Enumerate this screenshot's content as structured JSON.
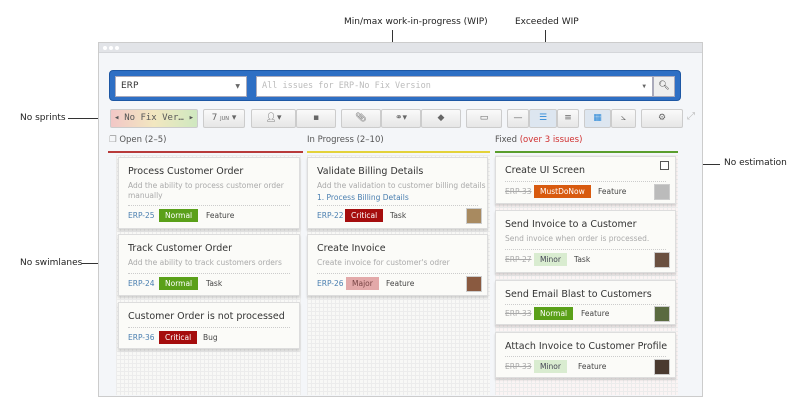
{
  "annotations": {
    "wip": "Min/max work-in-progress (WIP)",
    "exceeded": "Exceeded WIP",
    "sprints": "No sprints",
    "swimlanes": "No swimlanes",
    "estimation": "No estimation"
  },
  "search": {
    "project": "ERP",
    "placeholder": "All issues for ERP-No Fix Version"
  },
  "toolbar": {
    "version": "No Fix Ver…",
    "date_day": "7",
    "date_month": "JUN"
  },
  "colors": {
    "critical": "#a50d0d",
    "normal": "#5aa019",
    "major": "#e3a9a9",
    "minor": "#d9ecd0",
    "mustdonow": "#d85a0f",
    "open_line": "#b83a3a",
    "progress_line": "#e3d23a",
    "fixed_line": "#5a9e2d",
    "exceeded": "#d03030"
  },
  "columns": [
    {
      "title": "Open (2–5)",
      "cards": [
        {
          "title": "Process Customer Order",
          "desc": "Add the ability to process customer order manually",
          "key": "ERP-25",
          "priority": "Normal",
          "type": "Feature"
        },
        {
          "title": "Track Customer Order",
          "desc": "Add the ability to track customers orders",
          "key": "ERP-24",
          "priority": "Normal",
          "type": "Task"
        },
        {
          "title": "Customer Order is not processed",
          "key": "ERP-36",
          "priority": "Critical",
          "type": "Bug"
        }
      ]
    },
    {
      "title": "In Progress (2–10)",
      "cards": [
        {
          "title": "Validate Billing Details",
          "desc": "Add the validation to customer billing details",
          "link": "1. Process Billing Details",
          "key": "ERP-22",
          "priority": "Critical",
          "type": "Task"
        },
        {
          "title": "Create Invoice",
          "desc": "Create invoice for customer's odrer",
          "key": "ERP-26",
          "priority": "Major",
          "type": "Feature"
        }
      ]
    },
    {
      "title": "Fixed",
      "exceeded": "(over 3 issues)",
      "cards": [
        {
          "title": "Create UI Screen",
          "key": "ERP-33",
          "priority": "MustDoNow",
          "type": "Feature"
        },
        {
          "title": "Send Invoice to a Customer",
          "desc": "Send invoice when order is processed.",
          "key": "ERP-27",
          "priority": "Minor",
          "type": "Task"
        },
        {
          "title": "Send Email Blast to Customers",
          "key": "ERP-33",
          "priority": "Normal",
          "type": "Feature"
        },
        {
          "title": "Attach Invoice to Customer Profile",
          "key": "ERP-33",
          "priority": "Minor",
          "type": "Feature"
        }
      ]
    }
  ]
}
